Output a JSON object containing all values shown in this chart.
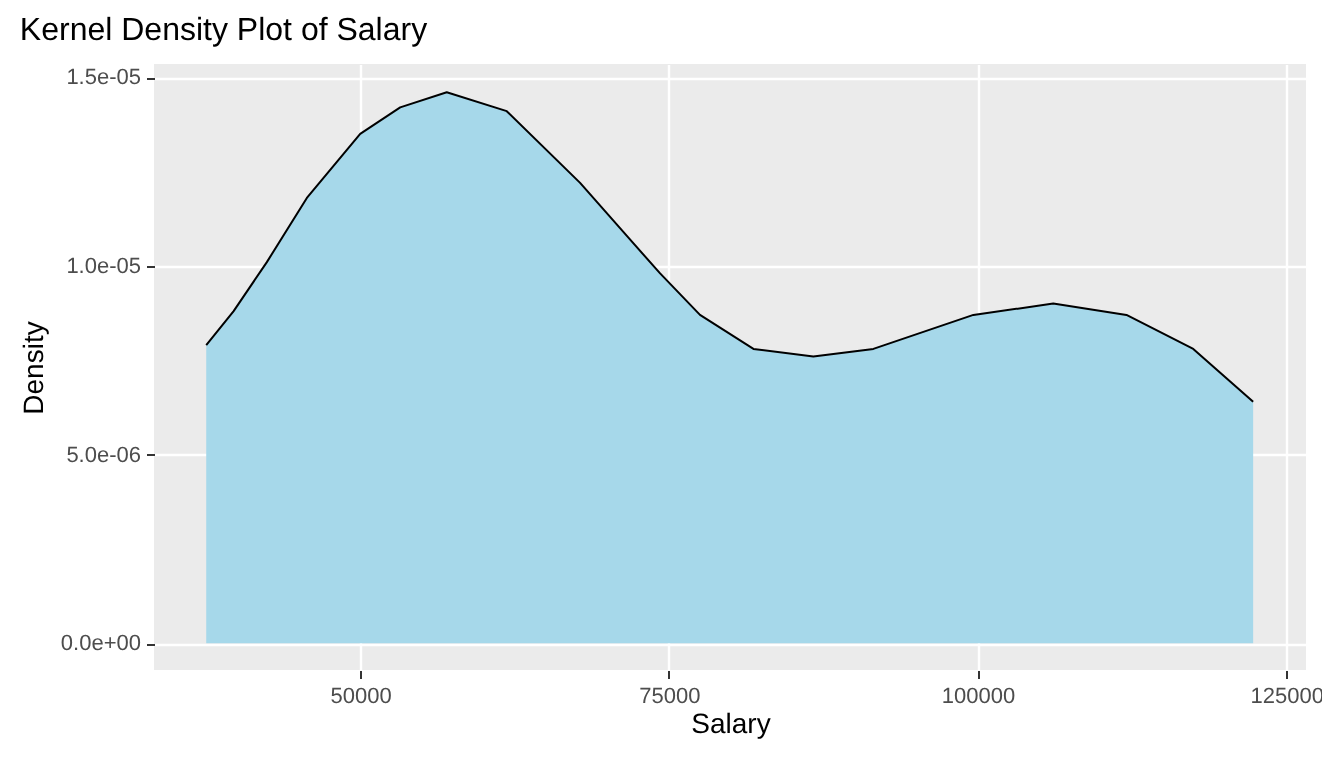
{
  "chart_data": {
    "type": "area",
    "title": "Kernel Density Plot of Salary",
    "xlabel": "Salary",
    "ylabel": "Density",
    "x": [
      37530,
      39750,
      42440,
      45680,
      50000,
      53240,
      57010,
      61870,
      67810,
      71580,
      74290,
      77520,
      81850,
      86700,
      91560,
      99660,
      106130,
      112060,
      117470,
      122320
    ],
    "series": [
      {
        "color": "#a6d8ea",
        "values": [
          7.9e-06,
          8.8e-06,
          1.01e-05,
          1.18e-05,
          1.35e-05,
          1.42e-05,
          1.46e-05,
          1.41e-05,
          1.22e-05,
          1.08e-05,
          9.8e-06,
          8.7e-06,
          7.8e-06,
          7.6e-06,
          7.8e-06,
          8.7e-06,
          9e-06,
          8.7e-06,
          7.8e-06,
          6.4e-06
        ]
      }
    ],
    "xlim": [
      33300,
      126600
    ],
    "xticks": [
      50000,
      75000,
      100000,
      125000
    ],
    "ylim": [
      -7.1e-07,
      1.535e-05
    ],
    "yticks": [
      {
        "value": 0,
        "label": "0.0e+00"
      },
      {
        "value": 5e-06,
        "label": "5.0e-06"
      },
      {
        "value": 1e-05,
        "label": "1.0e-05"
      },
      {
        "value": 1.5e-05,
        "label": "1.5e-05"
      }
    ],
    "grid": true
  }
}
